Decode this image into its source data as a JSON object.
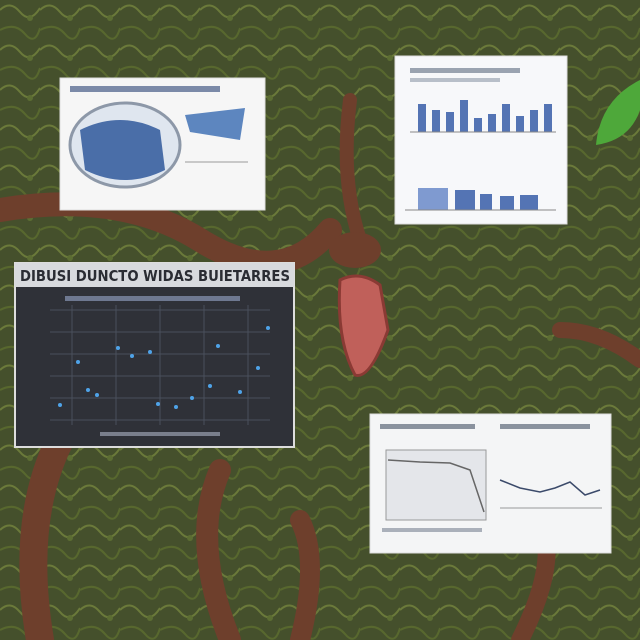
{
  "panel_heading": "DIBUSI DUNCTO WIDAS BUIETARRES"
}
